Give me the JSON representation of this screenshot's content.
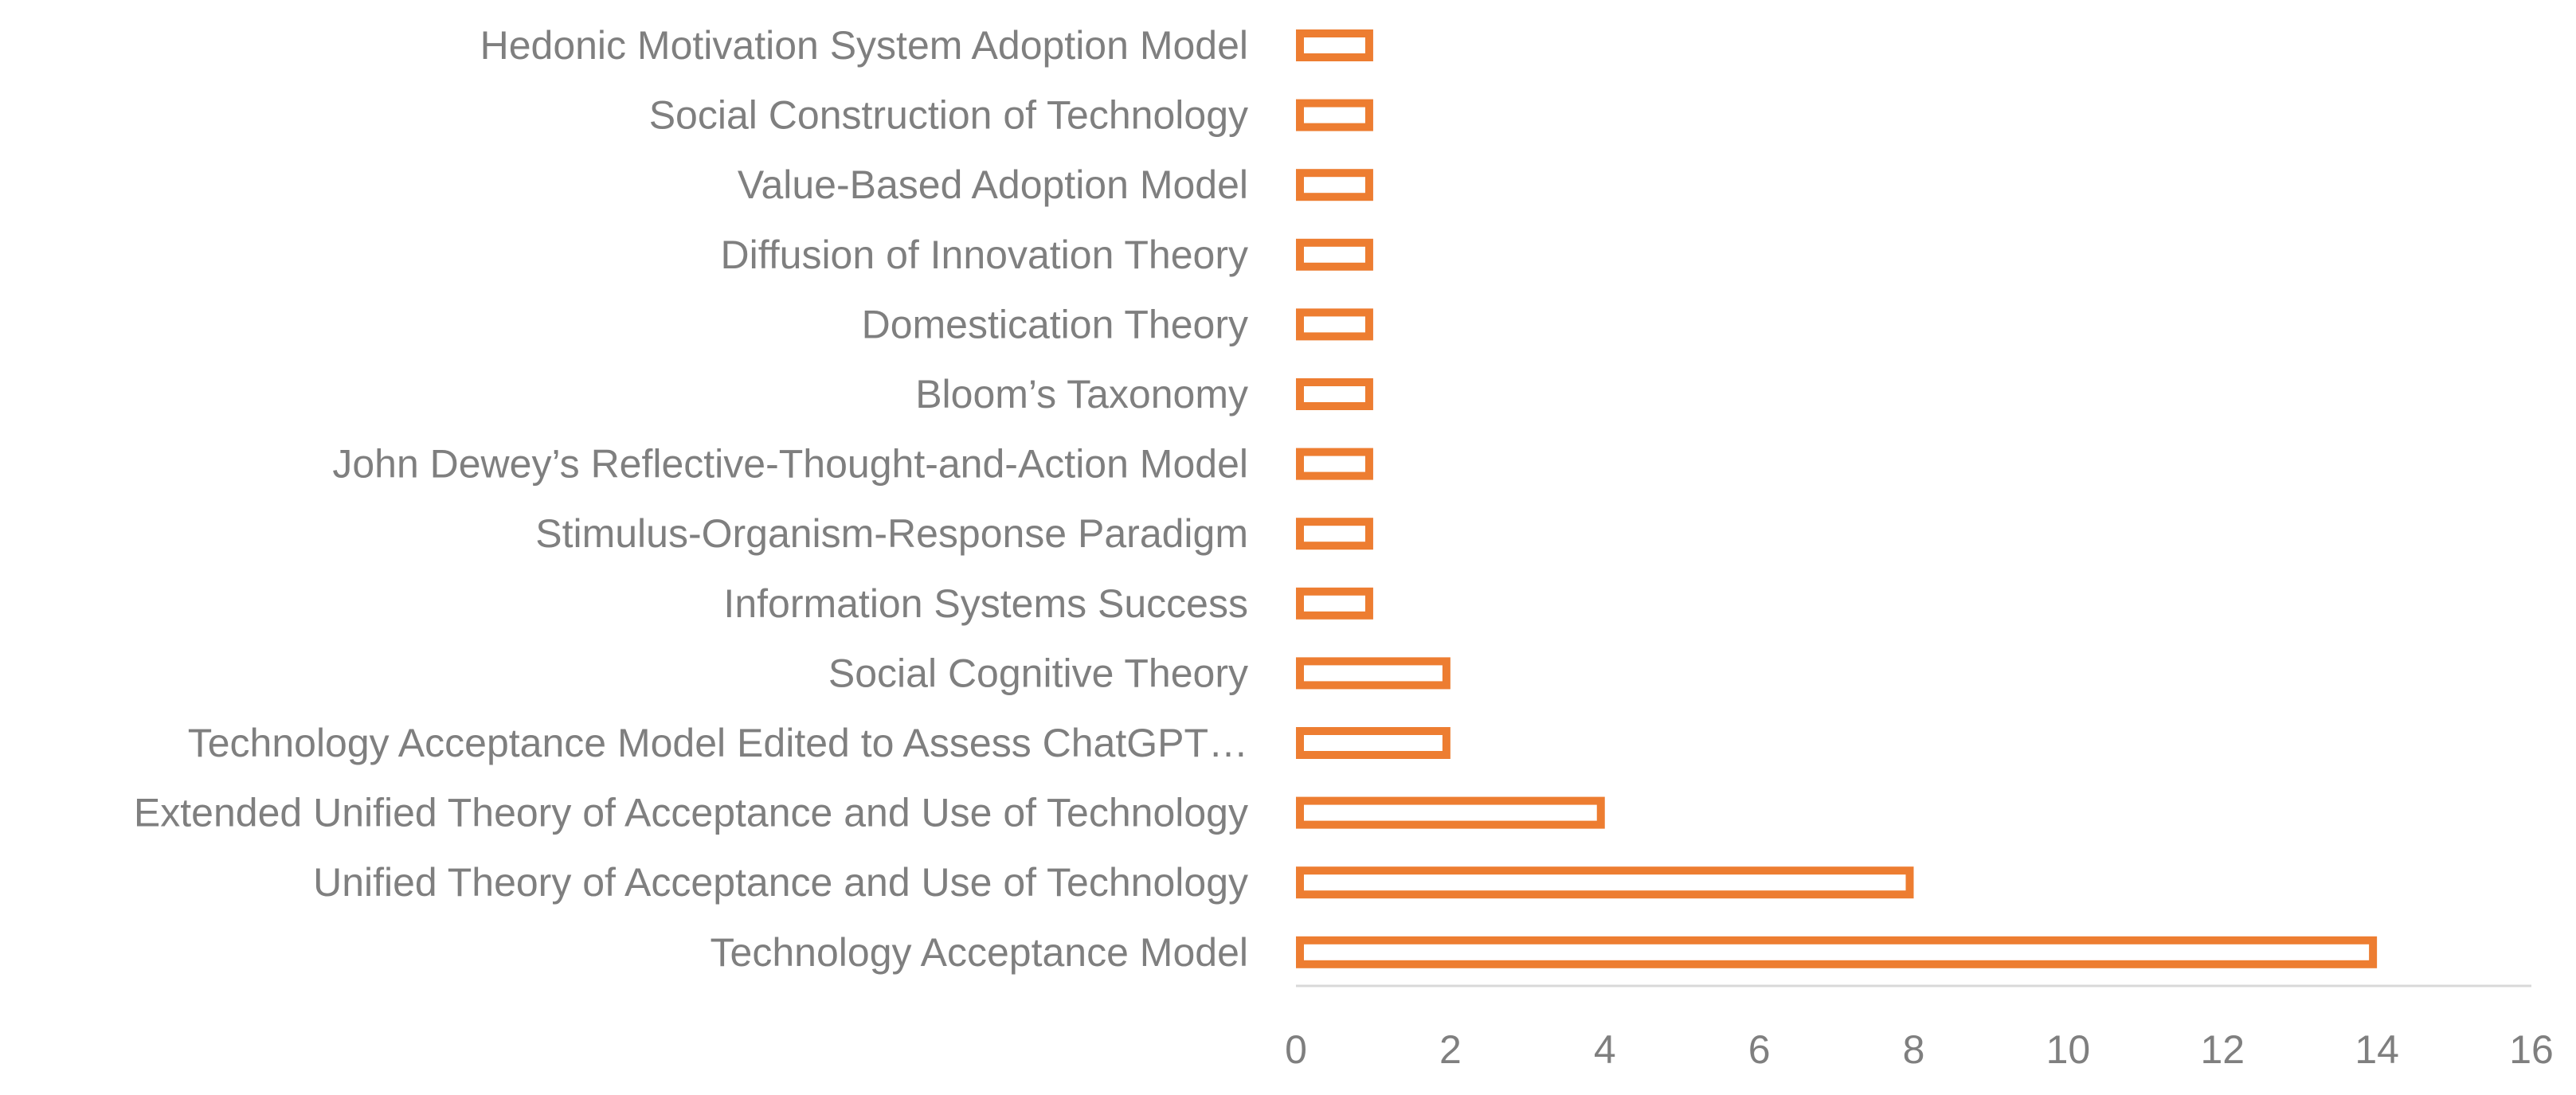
{
  "chart_data": {
    "type": "bar",
    "orientation": "horizontal",
    "title": "",
    "xlabel": "",
    "ylabel": "",
    "xlim": [
      0,
      16
    ],
    "x_ticks": [
      0,
      2,
      4,
      6,
      8,
      10,
      12,
      14,
      16
    ],
    "grid": false,
    "legend": "none",
    "bar_color": "#ed7d31",
    "text_color": "#7f7f7f",
    "axis_color": "#d9d9d9",
    "categories": [
      "Hedonic Motivation System Adoption Model",
      "Social Construction of Technology",
      "Value-Based Adoption Model",
      "Diffusion of Innovation Theory",
      "Domestication Theory",
      "Bloom’s Taxonomy",
      "John Dewey’s Reflective-Thought-and-Action Model",
      "Stimulus-Organism-Response Paradigm",
      "Information Systems Success",
      "Social Cognitive Theory",
      "Technology Acceptance Model Edited to Assess ChatGPT…",
      "Extended Unified Theory of Acceptance and Use of Technology",
      "Unified Theory of Acceptance and Use of Technology",
      "Technology Acceptance Model"
    ],
    "values": [
      1,
      1,
      1,
      1,
      1,
      1,
      1,
      1,
      1,
      2,
      2,
      4,
      8,
      14
    ]
  }
}
